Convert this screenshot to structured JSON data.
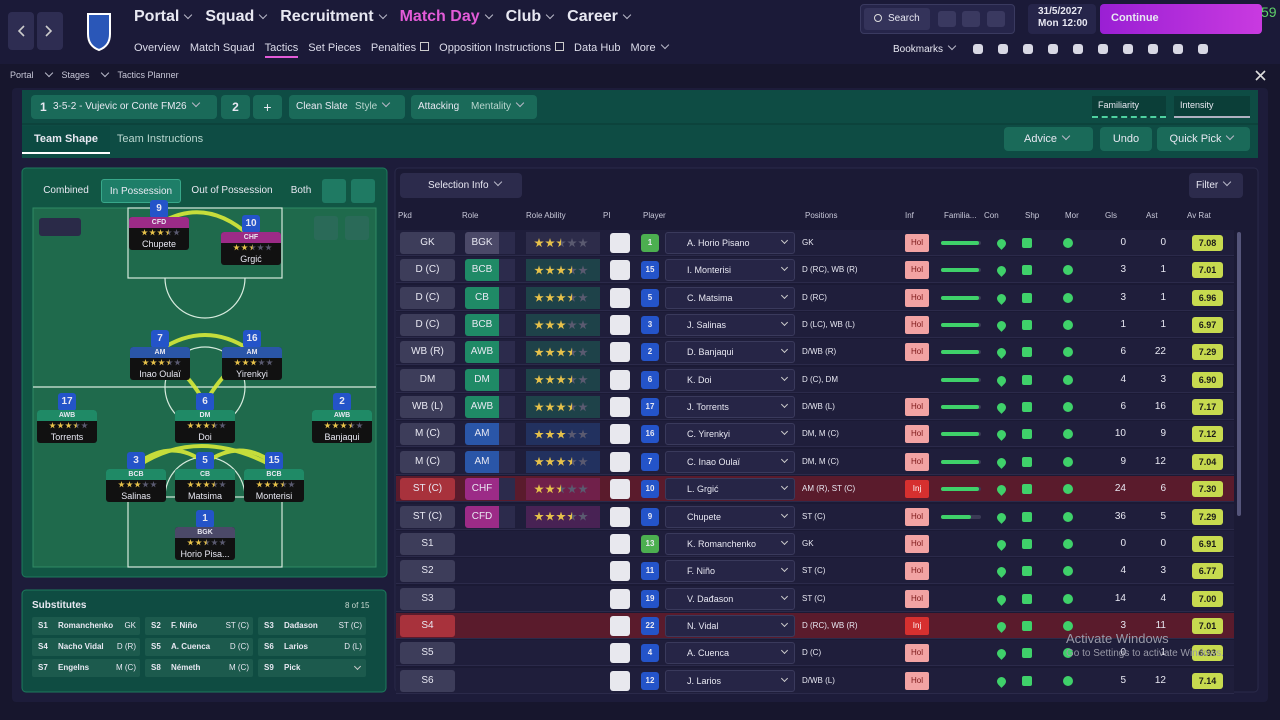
{
  "top_nav": {
    "menus": [
      {
        "label": "Portal"
      },
      {
        "label": "Squad"
      },
      {
        "label": "Recruitment"
      },
      {
        "label": "Match Day",
        "active": true
      },
      {
        "label": "Club"
      },
      {
        "label": "Career"
      }
    ],
    "sub_nav": [
      {
        "label": "Overview"
      },
      {
        "label": "Match Squad"
      },
      {
        "label": "Tactics",
        "active": true
      },
      {
        "label": "Set Pieces"
      },
      {
        "label": "Penalties",
        "external": true
      },
      {
        "label": "Opposition Instructions",
        "external": true
      },
      {
        "label": "Data Hub"
      },
      {
        "label": "More",
        "menu": true
      }
    ],
    "search": "Search",
    "date": "31/5/2027",
    "day": "Mon",
    "time": "12:00",
    "continue": "Continue",
    "corner": "59",
    "bookmarks": "Bookmarks"
  },
  "breadcrumb": [
    "Portal",
    "Stages",
    "Tactics Planner"
  ],
  "tactic_bar": {
    "slot1": "1",
    "tactic_name": "3-5-2 - Vujevic or Conte FM26",
    "slot2": "2",
    "add": "+",
    "style_value": "Clean Slate",
    "style_label": "Style",
    "mentality_value": "Attacking",
    "mentality_label": "Mentality",
    "familiarity": "Familiarity",
    "intensity": "Intensity"
  },
  "tabs": [
    {
      "label": "Team Shape",
      "active": true
    },
    {
      "label": "Team Instructions"
    }
  ],
  "actions": [
    "Advice",
    "Undo",
    "Quick Pick"
  ],
  "role_colors": {
    "BGK": "#4b4968",
    "BCB": "#1f8a66",
    "CB": "#1f8a66",
    "DM": "#1f8a66",
    "AWB": "#1f8a66",
    "AM": "#2a56a8",
    "CHF": "#9c2b87",
    "CFD": "#9c2b87"
  },
  "inf_colors": {
    "Hol": "#f2a3a3",
    "Inj": "#d6302f"
  },
  "kit_colors": {
    "outfield": "#2454c9",
    "goalkeeper": "#4caf50"
  },
  "pitch": {
    "views": [
      {
        "label": "Combined"
      },
      {
        "label": "In Possession",
        "active": true
      },
      {
        "label": "Out of Possession"
      },
      {
        "label": "Both"
      }
    ],
    "players": [
      {
        "number": 9,
        "role": "CFD",
        "name": "Chupete",
        "stars": 3.5
      },
      {
        "number": 10,
        "role": "CHF",
        "name": "Grgić",
        "stars": 2.5
      },
      {
        "number": 7,
        "role": "AM",
        "name": "Inao Oulaï",
        "stars": 3.5
      },
      {
        "number": 16,
        "role": "AM",
        "name": "Yirenkyi",
        "stars": 3
      },
      {
        "number": 17,
        "role": "AWB",
        "name": "Torrents",
        "stars": 3.5
      },
      {
        "number": 6,
        "role": "DM",
        "name": "Doi",
        "stars": 3.5
      },
      {
        "number": 2,
        "role": "AWB",
        "name": "Banjaqui",
        "stars": 3.5
      },
      {
        "number": 3,
        "role": "BCB",
        "name": "Salinas",
        "stars": 3
      },
      {
        "number": 5,
        "role": "CB",
        "name": "Matsima",
        "stars": 3.5
      },
      {
        "number": 15,
        "role": "BCB",
        "name": "Monterisi",
        "stars": 3.5
      },
      {
        "number": 1,
        "role": "BGK",
        "name": "Horio Pisa...",
        "stars": 2.5
      }
    ]
  },
  "substitutes": {
    "title": "Substitutes",
    "count": "8 of 15",
    "slots": [
      {
        "slot": "S1",
        "name": "Romanchenko",
        "pos": "GK"
      },
      {
        "slot": "S2",
        "name": "F. Niño",
        "pos": "ST (C)"
      },
      {
        "slot": "S3",
        "name": "Dađason",
        "pos": "ST (C)"
      },
      {
        "slot": "S4",
        "name": "Nacho Vidal",
        "pos": "D (R)"
      },
      {
        "slot": "S5",
        "name": "A. Cuenca",
        "pos": "D (C)"
      },
      {
        "slot": "S6",
        "name": "Larios",
        "pos": "D (L)"
      },
      {
        "slot": "S7",
        "name": "Engelns",
        "pos": "M (C)"
      },
      {
        "slot": "S8",
        "name": "Németh",
        "pos": "M (C)"
      },
      {
        "slot": "S9",
        "name": "Pick"
      }
    ]
  },
  "table": {
    "selection_info": "Selection Info",
    "filter": "Filter",
    "headers": [
      "Pkd",
      "Role",
      "Role Ability",
      "PI",
      "Player",
      "Positions",
      "Inf",
      "Familia...",
      "Con",
      "Shp",
      "Mor",
      "Gls",
      "Ast",
      "Av Rat"
    ],
    "rows": [
      {
        "pkd": "GK",
        "role": "BGK",
        "ability": 2.5,
        "number": 1,
        "goalkeeper": true,
        "player": "A. Horio Pisano",
        "positions": "GK",
        "inf": "Hol",
        "fam": 95,
        "gls": 0,
        "ast": 0,
        "rat": "7.08"
      },
      {
        "pkd": "D (C)",
        "role": "BCB",
        "ability": 3.5,
        "number": 15,
        "player": "I. Monterisi",
        "positions": "D (RC), WB (R)",
        "inf": "Hol",
        "fam": 95,
        "gls": 3,
        "ast": 1,
        "rat": "7.01"
      },
      {
        "pkd": "D (C)",
        "role": "CB",
        "ability": 3.5,
        "number": 5,
        "player": "C. Matsima",
        "positions": "D (RC)",
        "inf": "Hol",
        "fam": 95,
        "gls": 3,
        "ast": 1,
        "rat": "6.96"
      },
      {
        "pkd": "D (C)",
        "role": "BCB",
        "ability": 3,
        "number": 3,
        "player": "J. Salinas",
        "positions": "D (LC), WB (L)",
        "inf": "Hol",
        "fam": 95,
        "gls": 1,
        "ast": 1,
        "rat": "6.97"
      },
      {
        "pkd": "WB (R)",
        "role": "AWB",
        "ability": 3.5,
        "number": 2,
        "player": "D. Banjaqui",
        "positions": "D/WB (R)",
        "inf": "Hol",
        "fam": 95,
        "gls": 6,
        "ast": 22,
        "rat": "7.29"
      },
      {
        "pkd": "DM",
        "role": "DM",
        "ability": 3.5,
        "number": 6,
        "player": "K. Doi",
        "positions": "D (C), DM",
        "fam": 95,
        "gls": 4,
        "ast": 3,
        "rat": "6.90"
      },
      {
        "pkd": "WB (L)",
        "role": "AWB",
        "ability": 3.5,
        "number": 17,
        "player": "J. Torrents",
        "positions": "D/WB (L)",
        "inf": "Hol",
        "fam": 95,
        "gls": 6,
        "ast": 16,
        "rat": "7.17"
      },
      {
        "pkd": "M (C)",
        "role": "AM",
        "ability": 3,
        "number": 16,
        "player": "C. Yirenkyi",
        "positions": "DM, M (C)",
        "inf": "Hol",
        "fam": 95,
        "gls": 10,
        "ast": 9,
        "rat": "7.12"
      },
      {
        "pkd": "M (C)",
        "role": "AM",
        "ability": 3.5,
        "number": 7,
        "player": "C. Inao Oulaï",
        "positions": "DM, M (C)",
        "inf": "Hol",
        "fam": 95,
        "gls": 9,
        "ast": 12,
        "rat": "7.04"
      },
      {
        "pkd": "ST (C)",
        "role": "CHF",
        "ability": 2.5,
        "number": 10,
        "player": "L. Grgić",
        "positions": "AM (R), ST (C)",
        "inf": "Inj",
        "injured": true,
        "fam": 95,
        "gls": 24,
        "ast": 6,
        "rat": "7.30"
      },
      {
        "pkd": "ST (C)",
        "role": "CFD",
        "ability": 3.5,
        "number": 9,
        "player": "Chupete",
        "positions": "ST (C)",
        "inf": "Hol",
        "fam": 75,
        "gls": 36,
        "ast": 5,
        "rat": "7.29"
      },
      {
        "pkd": "S1",
        "number": 13,
        "goalkeeper": true,
        "player": "K. Romanchenko",
        "positions": "GK",
        "inf": "Hol",
        "gls": 0,
        "ast": 0,
        "rat": "6.91"
      },
      {
        "pkd": "S2",
        "number": 11,
        "player": "F. Niño",
        "positions": "ST (C)",
        "inf": "Hol",
        "gls": 4,
        "ast": 3,
        "rat": "6.77"
      },
      {
        "pkd": "S3",
        "number": 19,
        "player": "V. Dađason",
        "positions": "ST (C)",
        "inf": "Hol",
        "gls": 14,
        "ast": 4,
        "rat": "7.00"
      },
      {
        "pkd": "S4",
        "number": 22,
        "player": "N. Vidal",
        "positions": "D (RC), WB (R)",
        "inf": "Inj",
        "injured": true,
        "gls": 3,
        "ast": 11,
        "rat": "7.01"
      },
      {
        "pkd": "S5",
        "number": 4,
        "player": "A. Cuenca",
        "positions": "D (C)",
        "inf": "Hol",
        "gls": 0,
        "ast": 1,
        "rat": "6.93"
      },
      {
        "pkd": "S6",
        "number": 12,
        "player": "J. Larios",
        "positions": "D/WB (L)",
        "inf": "Hol",
        "gls": 5,
        "ast": 12,
        "rat": "7.14"
      }
    ]
  },
  "watermark": {
    "title": "Activate Windows",
    "text": "Go to Settings to activate Windows."
  }
}
